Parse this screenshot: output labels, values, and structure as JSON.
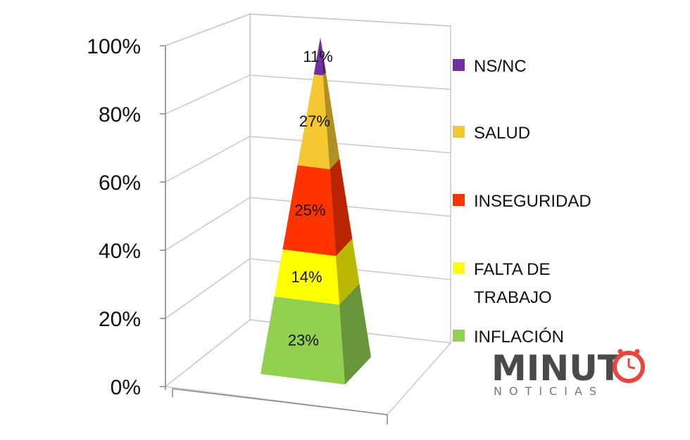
{
  "chart_data": {
    "type": "bar",
    "subtype": "3d-stacked-pyramid",
    "title": "",
    "xlabel": "",
    "ylabel": "",
    "ylim": [
      0,
      100
    ],
    "y_ticks": [
      "0%",
      "20%",
      "40%",
      "60%",
      "80%",
      "100%"
    ],
    "legend_position": "right",
    "series": [
      {
        "name": "INFLACIÓN",
        "value": 23,
        "label": "23%",
        "color": "#92d050"
      },
      {
        "name": "FALTA DE TRABAJO",
        "legend_lines": [
          "FALTA DE",
          "TRABAJO"
        ],
        "value": 14,
        "label": "14%",
        "color": "#ffff00"
      },
      {
        "name": "INSEGURIDAD",
        "value": 25,
        "label": "25%",
        "color": "#ff3300"
      },
      {
        "name": "SALUD",
        "value": 27,
        "label": "27%",
        "color": "#f5c832"
      },
      {
        "name": "NS/NC",
        "value": 11,
        "label": "11%",
        "color": "#7030a0"
      }
    ]
  },
  "watermark": {
    "main": "MINUT",
    "sub": "NOTICIAS",
    "icon": "clock-icon",
    "accent_color": "#e8463c"
  }
}
